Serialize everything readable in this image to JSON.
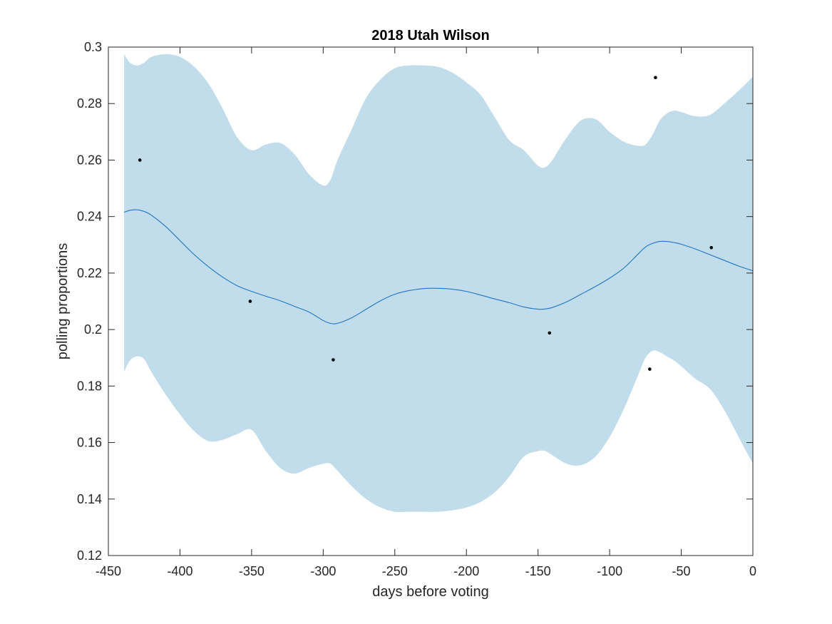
{
  "chart_data": {
    "type": "line",
    "title": "2018 Utah Wilson",
    "xlabel": "days before voting",
    "ylabel": "polling proportions",
    "xlim": [
      -450,
      0
    ],
    "ylim": [
      0.12,
      0.3
    ],
    "x_ticks": [
      -450,
      -400,
      -350,
      -300,
      -250,
      -200,
      -150,
      -100,
      -50,
      0
    ],
    "x_tick_labels": [
      "-450",
      "-400",
      "-350",
      "-300",
      "-250",
      "-200",
      "-150",
      "-100",
      "-50",
      "0"
    ],
    "y_ticks": [
      0.12,
      0.14,
      0.16,
      0.18,
      0.2,
      0.22,
      0.24,
      0.26,
      0.28,
      0.3
    ],
    "y_tick_labels": [
      "0.12",
      "0.14",
      "0.16",
      "0.18",
      "0.2",
      "0.22",
      "0.24",
      "0.26",
      "0.28",
      "0.3"
    ],
    "grid": false,
    "colors": {
      "band": "#c1dcea",
      "line": "#1f77c4",
      "points": "#000000",
      "axes": "#262626"
    },
    "series": [
      {
        "kind": "band",
        "x": [
          -439,
          -435,
          -430,
          -425,
          -420,
          -410,
          -400,
          -390,
          -380,
          -370,
          -360,
          -350,
          -340,
          -330,
          -320,
          -310,
          -300,
          -295,
          -290,
          -280,
          -270,
          -260,
          -250,
          -240,
          -230,
          -220,
          -210,
          -200,
          -190,
          -180,
          -170,
          -160,
          -150,
          -145,
          -140,
          -130,
          -120,
          -110,
          -100,
          -90,
          -80,
          -75,
          -70,
          -65,
          -60,
          -55,
          -50,
          -40,
          -30,
          -20,
          -10,
          0
        ],
        "upper": [
          0.2975,
          0.2945,
          0.2935,
          0.2945,
          0.2965,
          0.2975,
          0.2965,
          0.293,
          0.287,
          0.278,
          0.268,
          0.2635,
          0.2655,
          0.266,
          0.262,
          0.255,
          0.251,
          0.253,
          0.26,
          0.271,
          0.282,
          0.2885,
          0.2925,
          0.2935,
          0.2935,
          0.293,
          0.291,
          0.2875,
          0.283,
          0.275,
          0.267,
          0.2635,
          0.258,
          0.2575,
          0.26,
          0.268,
          0.274,
          0.2745,
          0.27,
          0.2665,
          0.265,
          0.2655,
          0.269,
          0.274,
          0.2765,
          0.2775,
          0.277,
          0.2755,
          0.276,
          0.28,
          0.2845,
          0.2895
        ],
        "lower": [
          0.185,
          0.189,
          0.1905,
          0.1895,
          0.185,
          0.177,
          0.17,
          0.164,
          0.1605,
          0.161,
          0.163,
          0.1645,
          0.157,
          0.151,
          0.149,
          0.151,
          0.1525,
          0.1525,
          0.15,
          0.1445,
          0.14,
          0.137,
          0.1355,
          0.1355,
          0.1355,
          0.1355,
          0.136,
          0.137,
          0.139,
          0.1425,
          0.148,
          0.155,
          0.157,
          0.157,
          0.1555,
          0.1525,
          0.152,
          0.155,
          0.162,
          0.172,
          0.184,
          0.19,
          0.1925,
          0.192,
          0.1905,
          0.189,
          0.187,
          0.1825,
          0.179,
          0.1715,
          0.162,
          0.1525
        ]
      },
      {
        "kind": "line",
        "x": [
          -439,
          -435,
          -430,
          -425,
          -420,
          -410,
          -400,
          -390,
          -380,
          -370,
          -360,
          -350,
          -340,
          -330,
          -320,
          -310,
          -300,
          -295,
          -290,
          -280,
          -270,
          -260,
          -250,
          -240,
          -230,
          -220,
          -210,
          -200,
          -190,
          -180,
          -170,
          -160,
          -150,
          -145,
          -140,
          -130,
          -120,
          -110,
          -100,
          -90,
          -80,
          -75,
          -70,
          -65,
          -60,
          -55,
          -50,
          -40,
          -30,
          -20,
          -10,
          0
        ],
        "y": [
          0.2415,
          0.2422,
          0.2424,
          0.2418,
          0.2405,
          0.2365,
          0.2315,
          0.2265,
          0.2222,
          0.2185,
          0.2155,
          0.2135,
          0.2118,
          0.2102,
          0.2082,
          0.2062,
          0.2032,
          0.2022,
          0.2022,
          0.2042,
          0.2072,
          0.2102,
          0.2125,
          0.2138,
          0.2145,
          0.2146,
          0.2143,
          0.2135,
          0.2122,
          0.2108,
          0.2095,
          0.208,
          0.2072,
          0.2073,
          0.2078,
          0.2098,
          0.2125,
          0.2152,
          0.2182,
          0.2218,
          0.2268,
          0.2292,
          0.2305,
          0.2312,
          0.2312,
          0.2308,
          0.2302,
          0.2285,
          0.2265,
          0.2245,
          0.2225,
          0.2208
        ]
      },
      {
        "kind": "points",
        "x": [
          -428,
          -351,
          -293,
          -142,
          -68,
          -72,
          -29
        ],
        "y": [
          0.26,
          0.21,
          0.1893,
          0.1988,
          0.2892,
          0.186,
          0.229
        ]
      }
    ]
  }
}
